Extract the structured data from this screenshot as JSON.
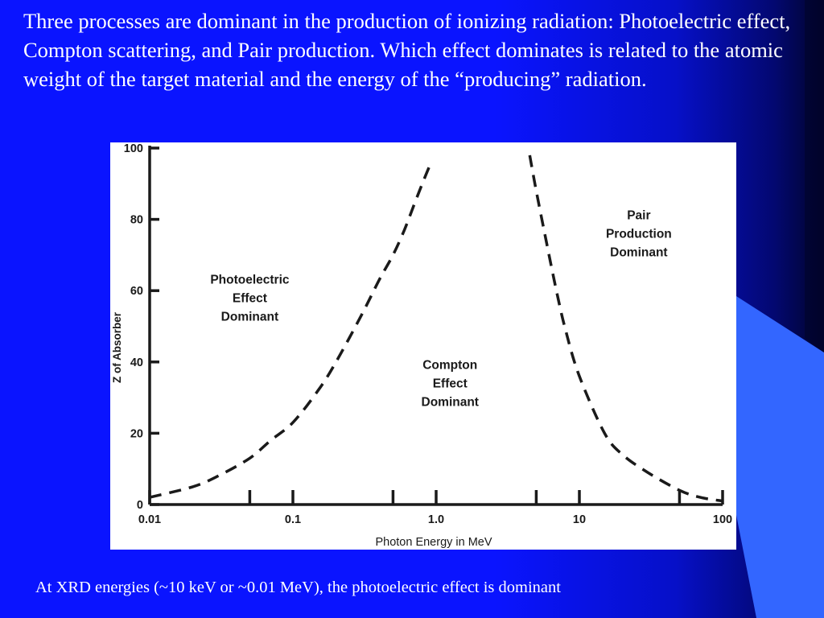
{
  "slide": {
    "heading": "Three processes are dominant in the production of ionizing radiation: Photoelectric effect, Compton scattering, and Pair production.  Which effect dominates is related to the atomic weight of the target material and the energy of the “producing” radiation.",
    "footer": "At XRD energies (~10 keV or ~0.01 MeV),  the photoelectric effect is dominant",
    "colors": {
      "background": "#0a14ff",
      "accent_shape": "#3366ff",
      "text": "#ffffff",
      "chart_ink": "#1a1a1a"
    }
  },
  "chart_data": {
    "type": "line",
    "title": "",
    "xlabel": "Photon Energy in MeV",
    "ylabel": "Z of Absorber",
    "x_scale": "log",
    "xlim": [
      0.01,
      100
    ],
    "ylim": [
      0,
      100
    ],
    "x_ticks": [
      {
        "value": 0.01,
        "label": "0.01"
      },
      {
        "value": 0.1,
        "label": "0.1"
      },
      {
        "value": 1,
        "label": "1.0"
      },
      {
        "value": 10,
        "label": "10"
      },
      {
        "value": 100,
        "label": "100"
      }
    ],
    "x_minor_ticks": [
      0.05,
      0.5,
      5,
      50
    ],
    "y_ticks": [
      {
        "value": 0,
        "label": "0"
      },
      {
        "value": 20,
        "label": "20"
      },
      {
        "value": 40,
        "label": "40"
      },
      {
        "value": 60,
        "label": "60"
      },
      {
        "value": 80,
        "label": "80"
      },
      {
        "value": 100,
        "label": "100"
      }
    ],
    "grid": false,
    "series": [
      {
        "style": "dashed",
        "x": [
          0.01,
          0.02,
          0.03,
          0.05,
          0.07,
          0.1,
          0.15,
          0.2,
          0.3,
          0.4,
          0.5,
          0.6,
          0.7,
          0.8,
          0.9
        ],
        "y": [
          2,
          5,
          8,
          13,
          18,
          23,
          32,
          40,
          53,
          63,
          70,
          77,
          84,
          90,
          95
        ]
      },
      {
        "style": "dashed",
        "x": [
          4.5,
          5,
          6,
          7,
          8,
          10,
          15,
          20,
          30,
          50,
          70,
          100
        ],
        "y": [
          98,
          88,
          72,
          59,
          49,
          36,
          20,
          14,
          9,
          4,
          2,
          1
        ]
      }
    ],
    "annotations": [
      {
        "lines": [
          "Photoelectric",
          "Effect",
          "Dominant"
        ],
        "x": 0.05,
        "y": 62
      },
      {
        "lines": [
          "Compton",
          "Effect",
          "Dominant"
        ],
        "x": 1.25,
        "y": 38
      },
      {
        "lines": [
          "Pair",
          "Production",
          "Dominant"
        ],
        "x": 26,
        "y": 80
      }
    ]
  }
}
